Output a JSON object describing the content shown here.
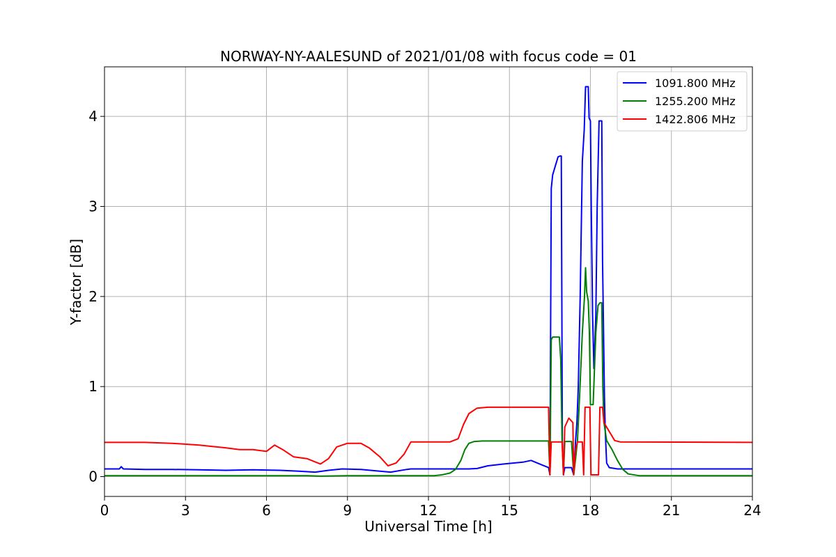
{
  "chart_data": {
    "type": "line",
    "title": "NORWAY-NY-AALESUND of 2021/01/08 with focus code = 01",
    "xlabel": "Universal Time [h]",
    "ylabel": "Y-factor [dB]",
    "xlim": [
      0,
      24
    ],
    "ylim": [
      -0.22,
      4.55
    ],
    "xticks": [
      "0",
      "3",
      "6",
      "9",
      "12",
      "15",
      "18",
      "21",
      "24"
    ],
    "yticks": [
      "0",
      "1",
      "2",
      "3",
      "4"
    ],
    "grid": true,
    "legend_position": "top-right",
    "series": [
      {
        "name": "1091.800 MHz",
        "color": "#0000ff",
        "points": [
          [
            0,
            0.085
          ],
          [
            0.55,
            0.085
          ],
          [
            0.62,
            0.11
          ],
          [
            0.7,
            0.085
          ],
          [
            1.5,
            0.08
          ],
          [
            2.5,
            0.08
          ],
          [
            3.5,
            0.075
          ],
          [
            4.5,
            0.07
          ],
          [
            5.5,
            0.075
          ],
          [
            6.5,
            0.07
          ],
          [
            7.2,
            0.06
          ],
          [
            7.8,
            0.05
          ],
          [
            8.3,
            0.07
          ],
          [
            8.8,
            0.085
          ],
          [
            9.5,
            0.08
          ],
          [
            10.2,
            0.06
          ],
          [
            10.6,
            0.05
          ],
          [
            11.2,
            0.08
          ],
          [
            11.35,
            0.085
          ],
          [
            13.5,
            0.085
          ],
          [
            13.8,
            0.09
          ],
          [
            14.2,
            0.12
          ],
          [
            14.8,
            0.14
          ],
          [
            15.5,
            0.16
          ],
          [
            15.8,
            0.18
          ],
          [
            16.2,
            0.13
          ],
          [
            16.45,
            0.1
          ],
          [
            16.5,
            0.02
          ],
          [
            16.55,
            3.2
          ],
          [
            16.6,
            3.35
          ],
          [
            16.65,
            3.4
          ],
          [
            16.7,
            3.45
          ],
          [
            16.75,
            3.5
          ],
          [
            16.8,
            3.55
          ],
          [
            16.87,
            3.56
          ],
          [
            16.92,
            3.56
          ],
          [
            16.96,
            0.4
          ],
          [
            17.0,
            0.02
          ],
          [
            17.05,
            0.1
          ],
          [
            17.3,
            0.1
          ],
          [
            17.38,
            0.02
          ],
          [
            17.45,
            0.4
          ],
          [
            17.5,
            0.6
          ],
          [
            17.55,
            1.0
          ],
          [
            17.62,
            2.0
          ],
          [
            17.7,
            3.5
          ],
          [
            17.77,
            3.85
          ],
          [
            17.82,
            4.33
          ],
          [
            17.92,
            4.33
          ],
          [
            17.95,
            3.98
          ],
          [
            18.0,
            3.95
          ],
          [
            18.03,
            3.0
          ],
          [
            18.08,
            1.8
          ],
          [
            18.13,
            1.2
          ],
          [
            18.2,
            1.8
          ],
          [
            18.25,
            3.0
          ],
          [
            18.32,
            3.95
          ],
          [
            18.42,
            3.95
          ],
          [
            18.45,
            2.4
          ],
          [
            18.52,
            0.9
          ],
          [
            18.55,
            0.5
          ],
          [
            18.6,
            0.15
          ],
          [
            18.7,
            0.1
          ],
          [
            19.0,
            0.085
          ],
          [
            24,
            0.085
          ]
        ]
      },
      {
        "name": "1255.200 MHz",
        "color": "#008000",
        "points": [
          [
            0,
            0.01
          ],
          [
            7.5,
            0.01
          ],
          [
            8.0,
            0.005
          ],
          [
            9.0,
            0.01
          ],
          [
            11.5,
            0.01
          ],
          [
            12.2,
            0.01
          ],
          [
            12.5,
            0.02
          ],
          [
            12.8,
            0.04
          ],
          [
            13.0,
            0.08
          ],
          [
            13.2,
            0.18
          ],
          [
            13.35,
            0.3
          ],
          [
            13.5,
            0.37
          ],
          [
            13.7,
            0.39
          ],
          [
            14.0,
            0.395
          ],
          [
            16.45,
            0.395
          ],
          [
            16.5,
            0.02
          ],
          [
            16.55,
            1.52
          ],
          [
            16.6,
            1.55
          ],
          [
            16.85,
            1.55
          ],
          [
            16.9,
            1.3
          ],
          [
            16.95,
            0.4
          ],
          [
            17.0,
            0.02
          ],
          [
            17.05,
            0.39
          ],
          [
            17.3,
            0.39
          ],
          [
            17.38,
            0.02
          ],
          [
            17.45,
            0.2
          ],
          [
            17.52,
            0.4
          ],
          [
            17.6,
            0.9
          ],
          [
            17.7,
            1.6
          ],
          [
            17.78,
            2.0
          ],
          [
            17.82,
            2.32
          ],
          [
            17.86,
            2.05
          ],
          [
            17.92,
            1.95
          ],
          [
            17.96,
            1.6
          ],
          [
            18.0,
            0.8
          ],
          [
            18.1,
            0.8
          ],
          [
            18.2,
            1.6
          ],
          [
            18.28,
            1.9
          ],
          [
            18.35,
            1.93
          ],
          [
            18.42,
            1.93
          ],
          [
            18.46,
            1.0
          ],
          [
            18.5,
            0.6
          ],
          [
            18.6,
            0.4
          ],
          [
            18.8,
            0.3
          ],
          [
            19.0,
            0.18
          ],
          [
            19.2,
            0.08
          ],
          [
            19.4,
            0.03
          ],
          [
            19.8,
            0.01
          ],
          [
            24,
            0.01
          ]
        ]
      },
      {
        "name": "1422.806 MHz",
        "color": "#ff0000",
        "points": [
          [
            0,
            0.38
          ],
          [
            1.5,
            0.38
          ],
          [
            2.5,
            0.37
          ],
          [
            3.5,
            0.35
          ],
          [
            4.5,
            0.32
          ],
          [
            5.0,
            0.3
          ],
          [
            5.5,
            0.3
          ],
          [
            6.0,
            0.28
          ],
          [
            6.3,
            0.35
          ],
          [
            6.6,
            0.3
          ],
          [
            7.0,
            0.22
          ],
          [
            7.5,
            0.2
          ],
          [
            8.0,
            0.14
          ],
          [
            8.3,
            0.2
          ],
          [
            8.6,
            0.33
          ],
          [
            9.0,
            0.37
          ],
          [
            9.5,
            0.37
          ],
          [
            9.8,
            0.32
          ],
          [
            10.2,
            0.22
          ],
          [
            10.5,
            0.12
          ],
          [
            10.8,
            0.15
          ],
          [
            11.1,
            0.25
          ],
          [
            11.35,
            0.385
          ],
          [
            12.8,
            0.385
          ],
          [
            13.1,
            0.42
          ],
          [
            13.3,
            0.58
          ],
          [
            13.5,
            0.7
          ],
          [
            13.8,
            0.76
          ],
          [
            14.2,
            0.77
          ],
          [
            16.45,
            0.77
          ],
          [
            16.5,
            0.02
          ],
          [
            16.55,
            0.385
          ],
          [
            16.95,
            0.385
          ],
          [
            17.0,
            0.02
          ],
          [
            17.05,
            0.55
          ],
          [
            17.2,
            0.65
          ],
          [
            17.35,
            0.6
          ],
          [
            17.38,
            0.02
          ],
          [
            17.45,
            0.3
          ],
          [
            17.52,
            0.385
          ],
          [
            17.7,
            0.385
          ],
          [
            17.75,
            0.02
          ],
          [
            17.8,
            0.77
          ],
          [
            17.98,
            0.77
          ],
          [
            18.02,
            0.02
          ],
          [
            18.3,
            0.02
          ],
          [
            18.35,
            0.77
          ],
          [
            18.45,
            0.77
          ],
          [
            18.5,
            0.6
          ],
          [
            18.7,
            0.5
          ],
          [
            18.9,
            0.4
          ],
          [
            19.1,
            0.385
          ],
          [
            24,
            0.38
          ]
        ]
      }
    ]
  }
}
